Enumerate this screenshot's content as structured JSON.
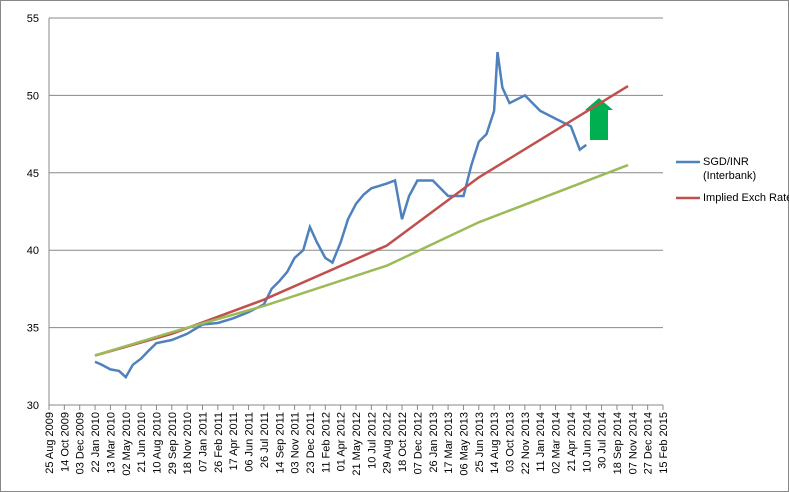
{
  "chart_data": {
    "type": "line",
    "ylim": [
      30,
      55
    ],
    "yticks": [
      30,
      35,
      40,
      45,
      50,
      55
    ],
    "grid": true,
    "xlim": [
      "25 Aug 2009",
      "15 Feb 2015"
    ],
    "xticks": [
      "25 Aug 2009",
      "14 Oct 2009",
      "03 Dec 2009",
      "22 Jan 2010",
      "13 Mar 2010",
      "02 May 2010",
      "21 Jun 2010",
      "10 Aug 2010",
      "29 Sep 2010",
      "18 Nov 2010",
      "07 Jan 2011",
      "26 Feb 2011",
      "17 Apr 2011",
      "06 Jun 2011",
      "26 Jul 2011",
      "14 Sep 2011",
      "03 Nov 2011",
      "23 Dec 2011",
      "11 Feb 2012",
      "01 Apr 2012",
      "21 May 2012",
      "10 Jul 2012",
      "29 Aug 2012",
      "18 Oct 2012",
      "07 Dec 2012",
      "26 Jan 2013",
      "17 Mar 2013",
      "06 May 2013",
      "25 Jun 2013",
      "14 Aug 2013",
      "03 Oct 2013",
      "22 Nov 2013",
      "11 Jan 2014",
      "02 Mar 2014",
      "21 Apr 2014",
      "10 Jun 2014",
      "30 Jul 2014",
      "18 Sep 2014",
      "07 Nov 2014",
      "27 Dec 2014",
      "15 Feb 2015"
    ],
    "legend": "right",
    "series": [
      {
        "name": "SGD/INR (Interbank)",
        "color": "#4f81bd",
        "x": [
          "22 Jan 2010",
          "13 Feb 2010",
          "13 Mar 2010",
          "10 Apr 2010",
          "02 May 2010",
          "25 May 2010",
          "21 Jun 2010",
          "15 Jul 2010",
          "10 Aug 2010",
          "29 Sep 2010",
          "18 Nov 2010",
          "07 Jan 2011",
          "26 Feb 2011",
          "17 Apr 2011",
          "06 Jun 2011",
          "26 Jul 2011",
          "20 Aug 2011",
          "14 Sep 2011",
          "10 Oct 2011",
          "03 Nov 2011",
          "01 Dec 2011",
          "23 Dec 2011",
          "15 Jan 2012",
          "11 Feb 2012",
          "05 Mar 2012",
          "01 Apr 2012",
          "25 Apr 2012",
          "21 May 2012",
          "15 Jun 2012",
          "10 Jul 2012",
          "29 Aug 2012",
          "25 Sep 2012",
          "18 Oct 2012",
          "10 Nov 2012",
          "07 Dec 2012",
          "26 Jan 2013",
          "17 Mar 2013",
          "06 May 2013",
          "01 Jun 2013",
          "25 Jun 2013",
          "20 Jul 2013",
          "14 Aug 2013",
          "25 Aug 2013",
          "10 Sep 2013",
          "03 Oct 2013",
          "22 Nov 2013",
          "11 Jan 2014",
          "02 Mar 2014",
          "21 Apr 2014",
          "20 May 2014",
          "10 Jun 2014"
        ],
        "values": [
          32.8,
          32.6,
          32.3,
          32.2,
          31.8,
          32.6,
          33.0,
          33.5,
          34.0,
          34.2,
          34.6,
          35.2,
          35.3,
          35.6,
          36.0,
          36.5,
          37.5,
          38.0,
          38.6,
          39.5,
          40.0,
          41.5,
          40.5,
          39.5,
          39.2,
          40.5,
          42.0,
          43.0,
          43.6,
          44.0,
          44.3,
          44.5,
          42.0,
          43.5,
          44.5,
          44.5,
          43.5,
          43.5,
          45.5,
          47.0,
          47.5,
          49.0,
          52.8,
          50.5,
          49.5,
          50.0,
          49.0,
          48.5,
          48.0,
          46.5,
          46.8
        ]
      },
      {
        "name": "Implied Exch Rate",
        "color": "#c0504d",
        "x": [
          "22 Jan 2010",
          "29 Sep 2010",
          "26 Jul 2011",
          "29 Aug 2012",
          "25 Jun 2013",
          "24 Oct 2014"
        ],
        "values": [
          33.2,
          34.6,
          36.8,
          40.3,
          44.7,
          50.6
        ]
      },
      {
        "color": "#9bbb59",
        "x": [
          "22 Jan 2010",
          "29 Sep 2010",
          "26 Jul 2011",
          "29 Aug 2012",
          "25 Jun 2013",
          "24 Oct 2014"
        ],
        "values": [
          33.2,
          34.7,
          36.4,
          39.0,
          41.8,
          45.5
        ]
      }
    ]
  }
}
